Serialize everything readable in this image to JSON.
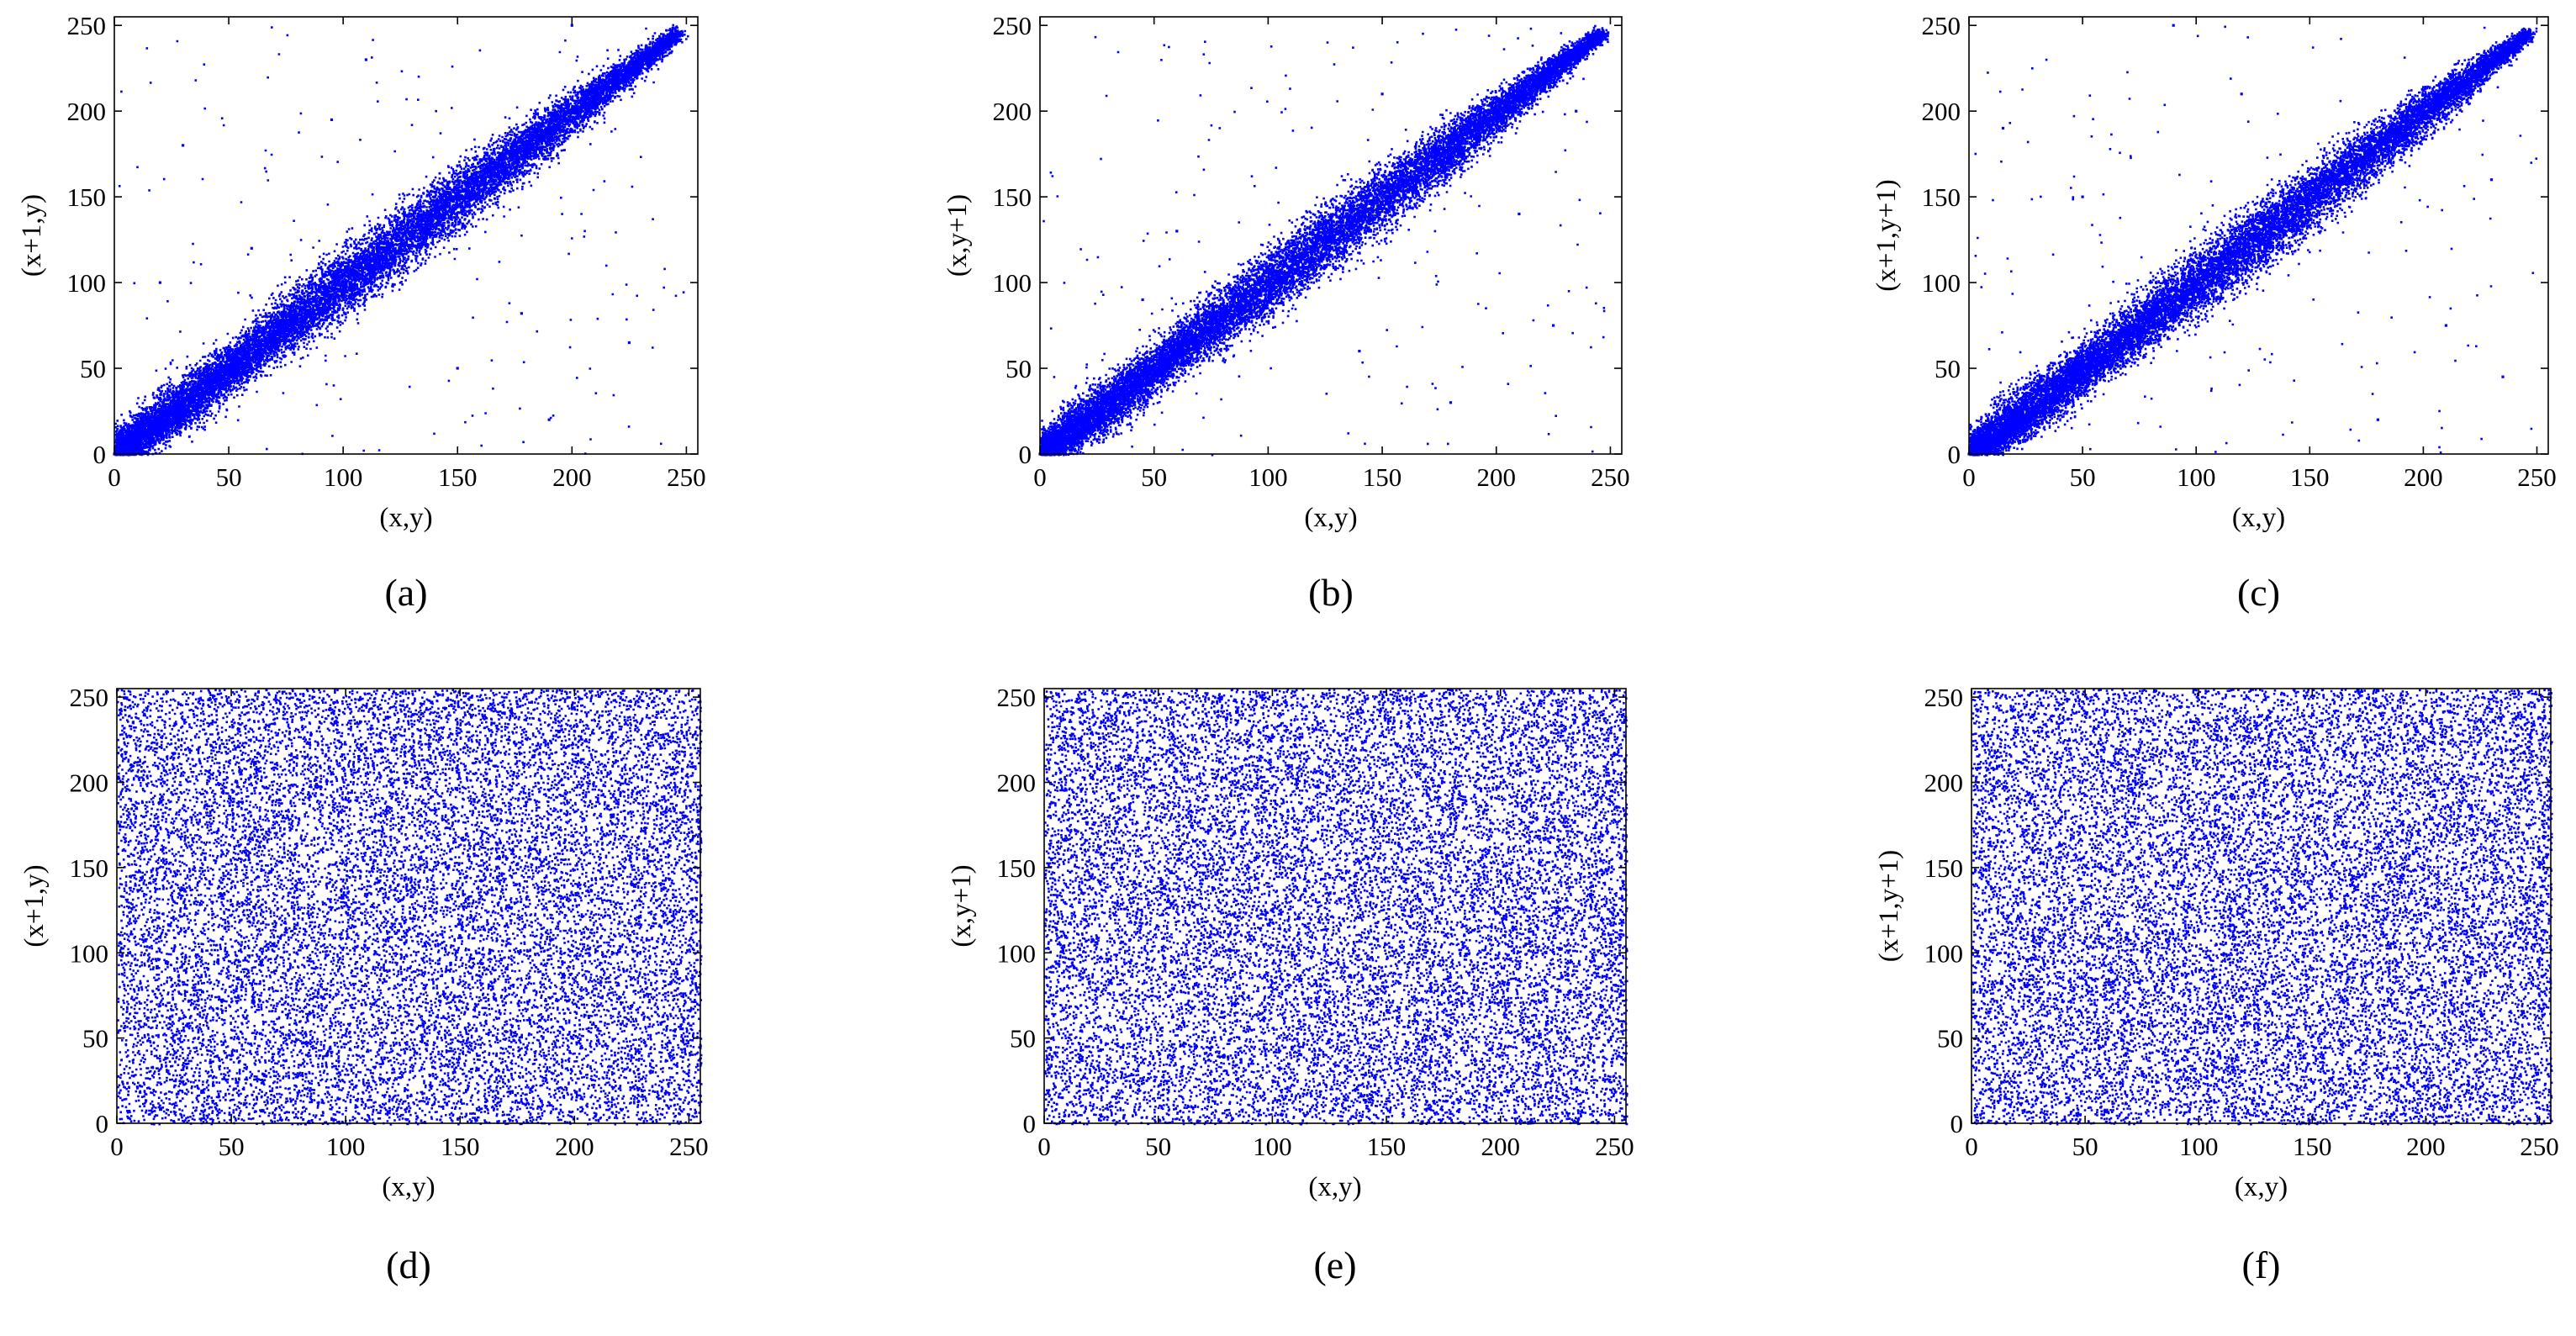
{
  "figure": {
    "caption_labels": [
      "(a)",
      "(b)",
      "(c)",
      "(d)",
      "(e)",
      "(f)"
    ]
  },
  "chart_data": [
    {
      "id": "a",
      "type": "scatter",
      "caption": "(a)",
      "xlabel": "(x,y)",
      "ylabel": "(x+1,y)",
      "xlim": [
        0,
        255
      ],
      "ylim": [
        0,
        255
      ],
      "xticks": [
        0,
        50,
        100,
        150,
        200,
        250
      ],
      "yticks": [
        0,
        50,
        100,
        150,
        200,
        250
      ],
      "grid": false,
      "marker_color": "#0000ff",
      "distribution": "correlated",
      "series": [
        {
          "points": [
            [
              0,
              0
            ],
            [
              5,
              4
            ],
            [
              10,
              12
            ],
            [
              15,
              14
            ],
            [
              20,
              21
            ],
            [
              25,
              24
            ],
            [
              30,
              32
            ],
            [
              35,
              33
            ],
            [
              40,
              41
            ],
            [
              45,
              44
            ],
            [
              50,
              52
            ],
            [
              55,
              53
            ],
            [
              60,
              61
            ],
            [
              65,
              66
            ],
            [
              70,
              69
            ],
            [
              75,
              77
            ],
            [
              80,
              79
            ],
            [
              85,
              86
            ],
            [
              90,
              88
            ],
            [
              95,
              97
            ],
            [
              100,
              99
            ],
            [
              105,
              106
            ],
            [
              110,
              108
            ],
            [
              115,
              117
            ],
            [
              120,
              119
            ],
            [
              125,
              126
            ],
            [
              130,
              129
            ],
            [
              135,
              136
            ],
            [
              140,
              138
            ],
            [
              145,
              147
            ],
            [
              150,
              149
            ],
            [
              155,
              156
            ],
            [
              160,
              158
            ],
            [
              165,
              167
            ],
            [
              170,
              168
            ],
            [
              175,
              176
            ],
            [
              180,
              179
            ],
            [
              185,
              186
            ],
            [
              190,
              188
            ],
            [
              195,
              196
            ],
            [
              200,
              199
            ],
            [
              210,
              211
            ],
            [
              220,
              219
            ],
            [
              230,
              231
            ],
            [
              240,
              239
            ],
            [
              245,
              241
            ],
            [
              20,
              100
            ],
            [
              30,
              180
            ],
            [
              95,
              195
            ],
            [
              110,
              230
            ],
            [
              150,
              50
            ],
            [
              178,
              82
            ],
            [
              60,
              120
            ],
            [
              200,
              250
            ],
            [
              225,
              65
            ],
            [
              190,
              20
            ]
          ]
        }
      ]
    },
    {
      "id": "b",
      "type": "scatter",
      "caption": "(b)",
      "xlabel": "(x,y)",
      "ylabel": "(x,y+1)",
      "xlim": [
        0,
        255
      ],
      "ylim": [
        0,
        255
      ],
      "xticks": [
        0,
        50,
        100,
        150,
        200,
        250
      ],
      "yticks": [
        0,
        50,
        100,
        150,
        200,
        250
      ],
      "grid": false,
      "marker_color": "#0000ff",
      "distribution": "correlated",
      "series": [
        {
          "points": [
            [
              0,
              0
            ],
            [
              5,
              6
            ],
            [
              10,
              9
            ],
            [
              15,
              16
            ],
            [
              20,
              19
            ],
            [
              25,
              27
            ],
            [
              30,
              29
            ],
            [
              35,
              36
            ],
            [
              40,
              38
            ],
            [
              45,
              46
            ],
            [
              50,
              49
            ],
            [
              55,
              56
            ],
            [
              60,
              58
            ],
            [
              65,
              66
            ],
            [
              70,
              69
            ],
            [
              75,
              76
            ],
            [
              80,
              78
            ],
            [
              85,
              86
            ],
            [
              90,
              89
            ],
            [
              95,
              96
            ],
            [
              100,
              98
            ],
            [
              105,
              106
            ],
            [
              110,
              109
            ],
            [
              115,
              116
            ],
            [
              120,
              118
            ],
            [
              125,
              126
            ],
            [
              130,
              129
            ],
            [
              135,
              136
            ],
            [
              140,
              138
            ],
            [
              145,
              146
            ],
            [
              150,
              149
            ],
            [
              155,
              156
            ],
            [
              160,
              158
            ],
            [
              165,
              166
            ],
            [
              170,
              169
            ],
            [
              175,
              176
            ],
            [
              180,
              178
            ],
            [
              185,
              186
            ],
            [
              190,
              189
            ],
            [
              200,
              201
            ],
            [
              210,
              209
            ],
            [
              220,
              221
            ],
            [
              230,
              229
            ],
            [
              240,
              241
            ],
            [
              248,
              245
            ],
            [
              210,
              140
            ],
            [
              235,
              200
            ],
            [
              60,
              130
            ],
            [
              140,
              60
            ],
            [
              180,
              30
            ],
            [
              45,
              90
            ],
            [
              150,
              210
            ],
            [
              225,
              75
            ]
          ]
        }
      ]
    },
    {
      "id": "c",
      "type": "scatter",
      "caption": "(c)",
      "xlabel": "(x,y)",
      "ylabel": "(x+1,y+1)",
      "xlim": [
        0,
        255
      ],
      "ylim": [
        0,
        255
      ],
      "xticks": [
        0,
        50,
        100,
        150,
        200,
        250
      ],
      "yticks": [
        0,
        50,
        100,
        150,
        200,
        250
      ],
      "grid": false,
      "marker_color": "#0000ff",
      "distribution": "correlated",
      "series": [
        {
          "points": [
            [
              0,
              0
            ],
            [
              5,
              7
            ],
            [
              10,
              8
            ],
            [
              15,
              17
            ],
            [
              20,
              18
            ],
            [
              25,
              28
            ],
            [
              30,
              28
            ],
            [
              35,
              37
            ],
            [
              40,
              39
            ],
            [
              45,
              47
            ],
            [
              50,
              48
            ],
            [
              55,
              57
            ],
            [
              60,
              59
            ],
            [
              65,
              67
            ],
            [
              70,
              68
            ],
            [
              75,
              77
            ],
            [
              80,
              79
            ],
            [
              85,
              87
            ],
            [
              90,
              88
            ],
            [
              95,
              97
            ],
            [
              100,
              99
            ],
            [
              105,
              107
            ],
            [
              110,
              108
            ],
            [
              115,
              117
            ],
            [
              120,
              119
            ],
            [
              125,
              127
            ],
            [
              130,
              128
            ],
            [
              135,
              137
            ],
            [
              140,
              139
            ],
            [
              145,
              147
            ],
            [
              150,
              148
            ],
            [
              155,
              157
            ],
            [
              160,
              159
            ],
            [
              165,
              167
            ],
            [
              170,
              168
            ],
            [
              175,
              177
            ],
            [
              180,
              179
            ],
            [
              190,
              191
            ],
            [
              200,
              199
            ],
            [
              210,
              211
            ],
            [
              220,
              219
            ],
            [
              230,
              231
            ],
            [
              240,
              239
            ],
            [
              245,
              242
            ],
            [
              235,
              45
            ],
            [
              230,
              160
            ],
            [
              180,
              20
            ],
            [
              120,
              210
            ],
            [
              50,
              150
            ],
            [
              90,
              250
            ],
            [
              15,
              190
            ],
            [
              210,
              75
            ]
          ]
        }
      ]
    },
    {
      "id": "d",
      "type": "scatter",
      "caption": "(d)",
      "xlabel": "(x,y)",
      "ylabel": "(x+1,y)",
      "xlim": [
        0,
        255
      ],
      "ylim": [
        0,
        255
      ],
      "xticks": [
        0,
        50,
        100,
        150,
        200,
        250
      ],
      "yticks": [
        0,
        50,
        100,
        150,
        200,
        250
      ],
      "grid": false,
      "marker_color": "#0000ff",
      "distribution": "uniform",
      "series": [
        {
          "points": [
            [
              12,
              240
            ],
            [
              37,
              18
            ],
            [
              63,
              201
            ],
            [
              88,
              77
            ],
            [
              113,
              154
            ],
            [
              138,
              33
            ],
            [
              164,
              222
            ],
            [
              189,
              105
            ],
            [
              214,
              12
            ],
            [
              240,
              180
            ],
            [
              25,
              130
            ],
            [
              75,
              90
            ],
            [
              125,
              245
            ],
            [
              175,
              60
            ],
            [
              225,
              140
            ],
            [
              50,
              50
            ],
            [
              100,
              190
            ],
            [
              150,
              110
            ],
            [
              200,
              230
            ],
            [
              250,
              5
            ]
          ]
        }
      ]
    },
    {
      "id": "e",
      "type": "scatter",
      "caption": "(e)",
      "xlabel": "(x,y)",
      "ylabel": "(x,y+1)",
      "xlim": [
        0,
        255
      ],
      "ylim": [
        0,
        255
      ],
      "xticks": [
        0,
        50,
        100,
        150,
        200,
        250
      ],
      "yticks": [
        0,
        50,
        100,
        150,
        200,
        250
      ],
      "grid": false,
      "marker_color": "#0000ff",
      "distribution": "uniform",
      "series": [
        {
          "points": [
            [
              8,
              15
            ],
            [
              33,
              210
            ],
            [
              58,
              95
            ],
            [
              83,
              170
            ],
            [
              108,
              40
            ],
            [
              133,
              250
            ],
            [
              158,
              125
            ],
            [
              183,
              70
            ],
            [
              208,
              195
            ],
            [
              233,
              20
            ],
            [
              20,
              145
            ],
            [
              70,
              60
            ],
            [
              120,
              180
            ],
            [
              170,
              235
            ],
            [
              220,
              100
            ],
            [
              45,
              25
            ],
            [
              95,
              215
            ],
            [
              145,
              85
            ],
            [
              195,
              160
            ],
            [
              245,
              240
            ]
          ]
        }
      ]
    },
    {
      "id": "f",
      "type": "scatter",
      "caption": "(f)",
      "xlabel": "(x,y)",
      "ylabel": "(x+1,y+1)",
      "xlim": [
        0,
        255
      ],
      "ylim": [
        0,
        255
      ],
      "xticks": [
        0,
        50,
        100,
        150,
        200,
        250
      ],
      "yticks": [
        0,
        50,
        100,
        150,
        200,
        250
      ],
      "grid": false,
      "marker_color": "#0000ff",
      "distribution": "uniform",
      "series": [
        {
          "points": [
            [
              15,
              100
            ],
            [
              40,
              235
            ],
            [
              65,
              30
            ],
            [
              90,
              150
            ],
            [
              115,
              80
            ],
            [
              140,
              205
            ],
            [
              165,
              10
            ],
            [
              190,
              175
            ],
            [
              215,
              55
            ],
            [
              240,
              120
            ],
            [
              30,
              60
            ],
            [
              80,
              225
            ],
            [
              130,
              140
            ],
            [
              180,
              35
            ],
            [
              230,
              250
            ],
            [
              55,
              185
            ],
            [
              105,
              15
            ],
            [
              155,
              95
            ],
            [
              205,
              245
            ],
            [
              252,
              70
            ]
          ]
        }
      ]
    }
  ]
}
